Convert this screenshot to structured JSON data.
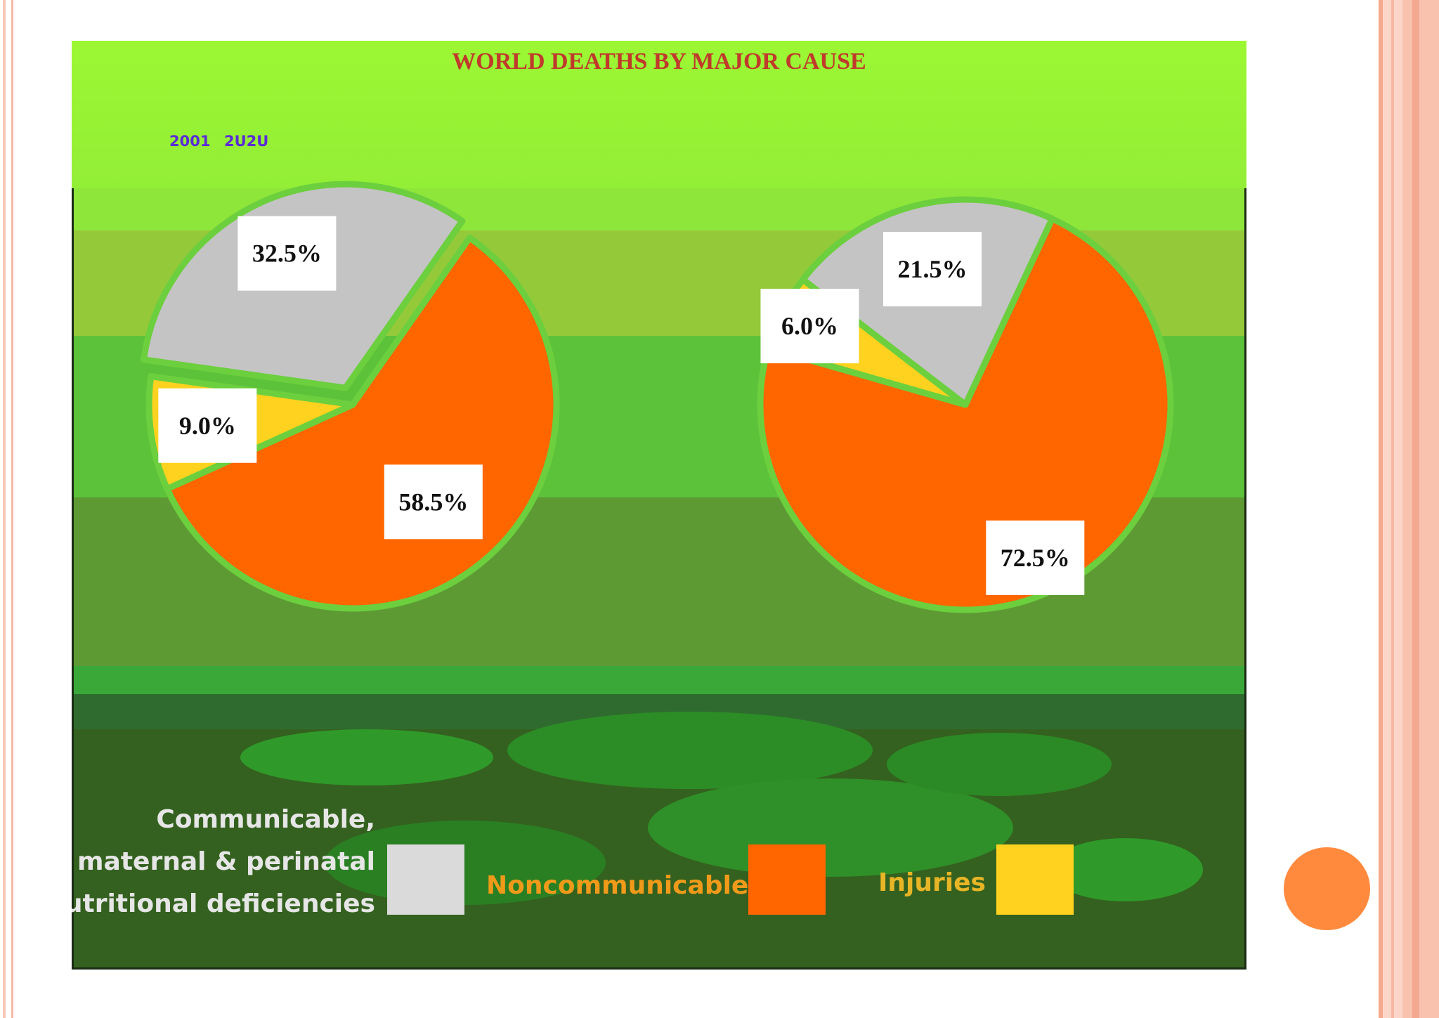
{
  "chart_data": {
    "type": "pie",
    "title": "WORLD DEATHS BY MAJOR CAUSE",
    "subtitle_years": [
      "2001",
      "2U2U"
    ],
    "pies": [
      {
        "year": "2001",
        "slices": [
          {
            "category": "Noncommunicable",
            "value": 58.5,
            "label": "58.5%"
          },
          {
            "category": "Injuries",
            "value": 9.0,
            "label": "9.0%"
          },
          {
            "category": "Communicable, maternal & perinatal nutritional deficiencies",
            "value": 32.5,
            "label": "32.5%"
          }
        ]
      },
      {
        "year": "2U2U",
        "slices": [
          {
            "category": "Noncommunicable",
            "value": 72.5,
            "label": "72.5%"
          },
          {
            "category": "Injuries",
            "value": 6.0,
            "label": "6.0%"
          },
          {
            "category": "Communicable, maternal & perinatal nutritional deficiencies",
            "value": 21.5,
            "label": "21.5%"
          }
        ]
      }
    ],
    "legend": {
      "communicable_lines": [
        "Communicable,",
        "maternal & perinatal",
        "nutritional deficiencies"
      ],
      "noncommunicable": "Noncommunicable",
      "injuries": "Injuries"
    },
    "colors": {
      "Noncommunicable": "#ff6600",
      "Injuries": "#ffd21f",
      "Communicable": "#c4c4c4",
      "title": "#c0392b",
      "years": "#5a2bd6"
    }
  }
}
